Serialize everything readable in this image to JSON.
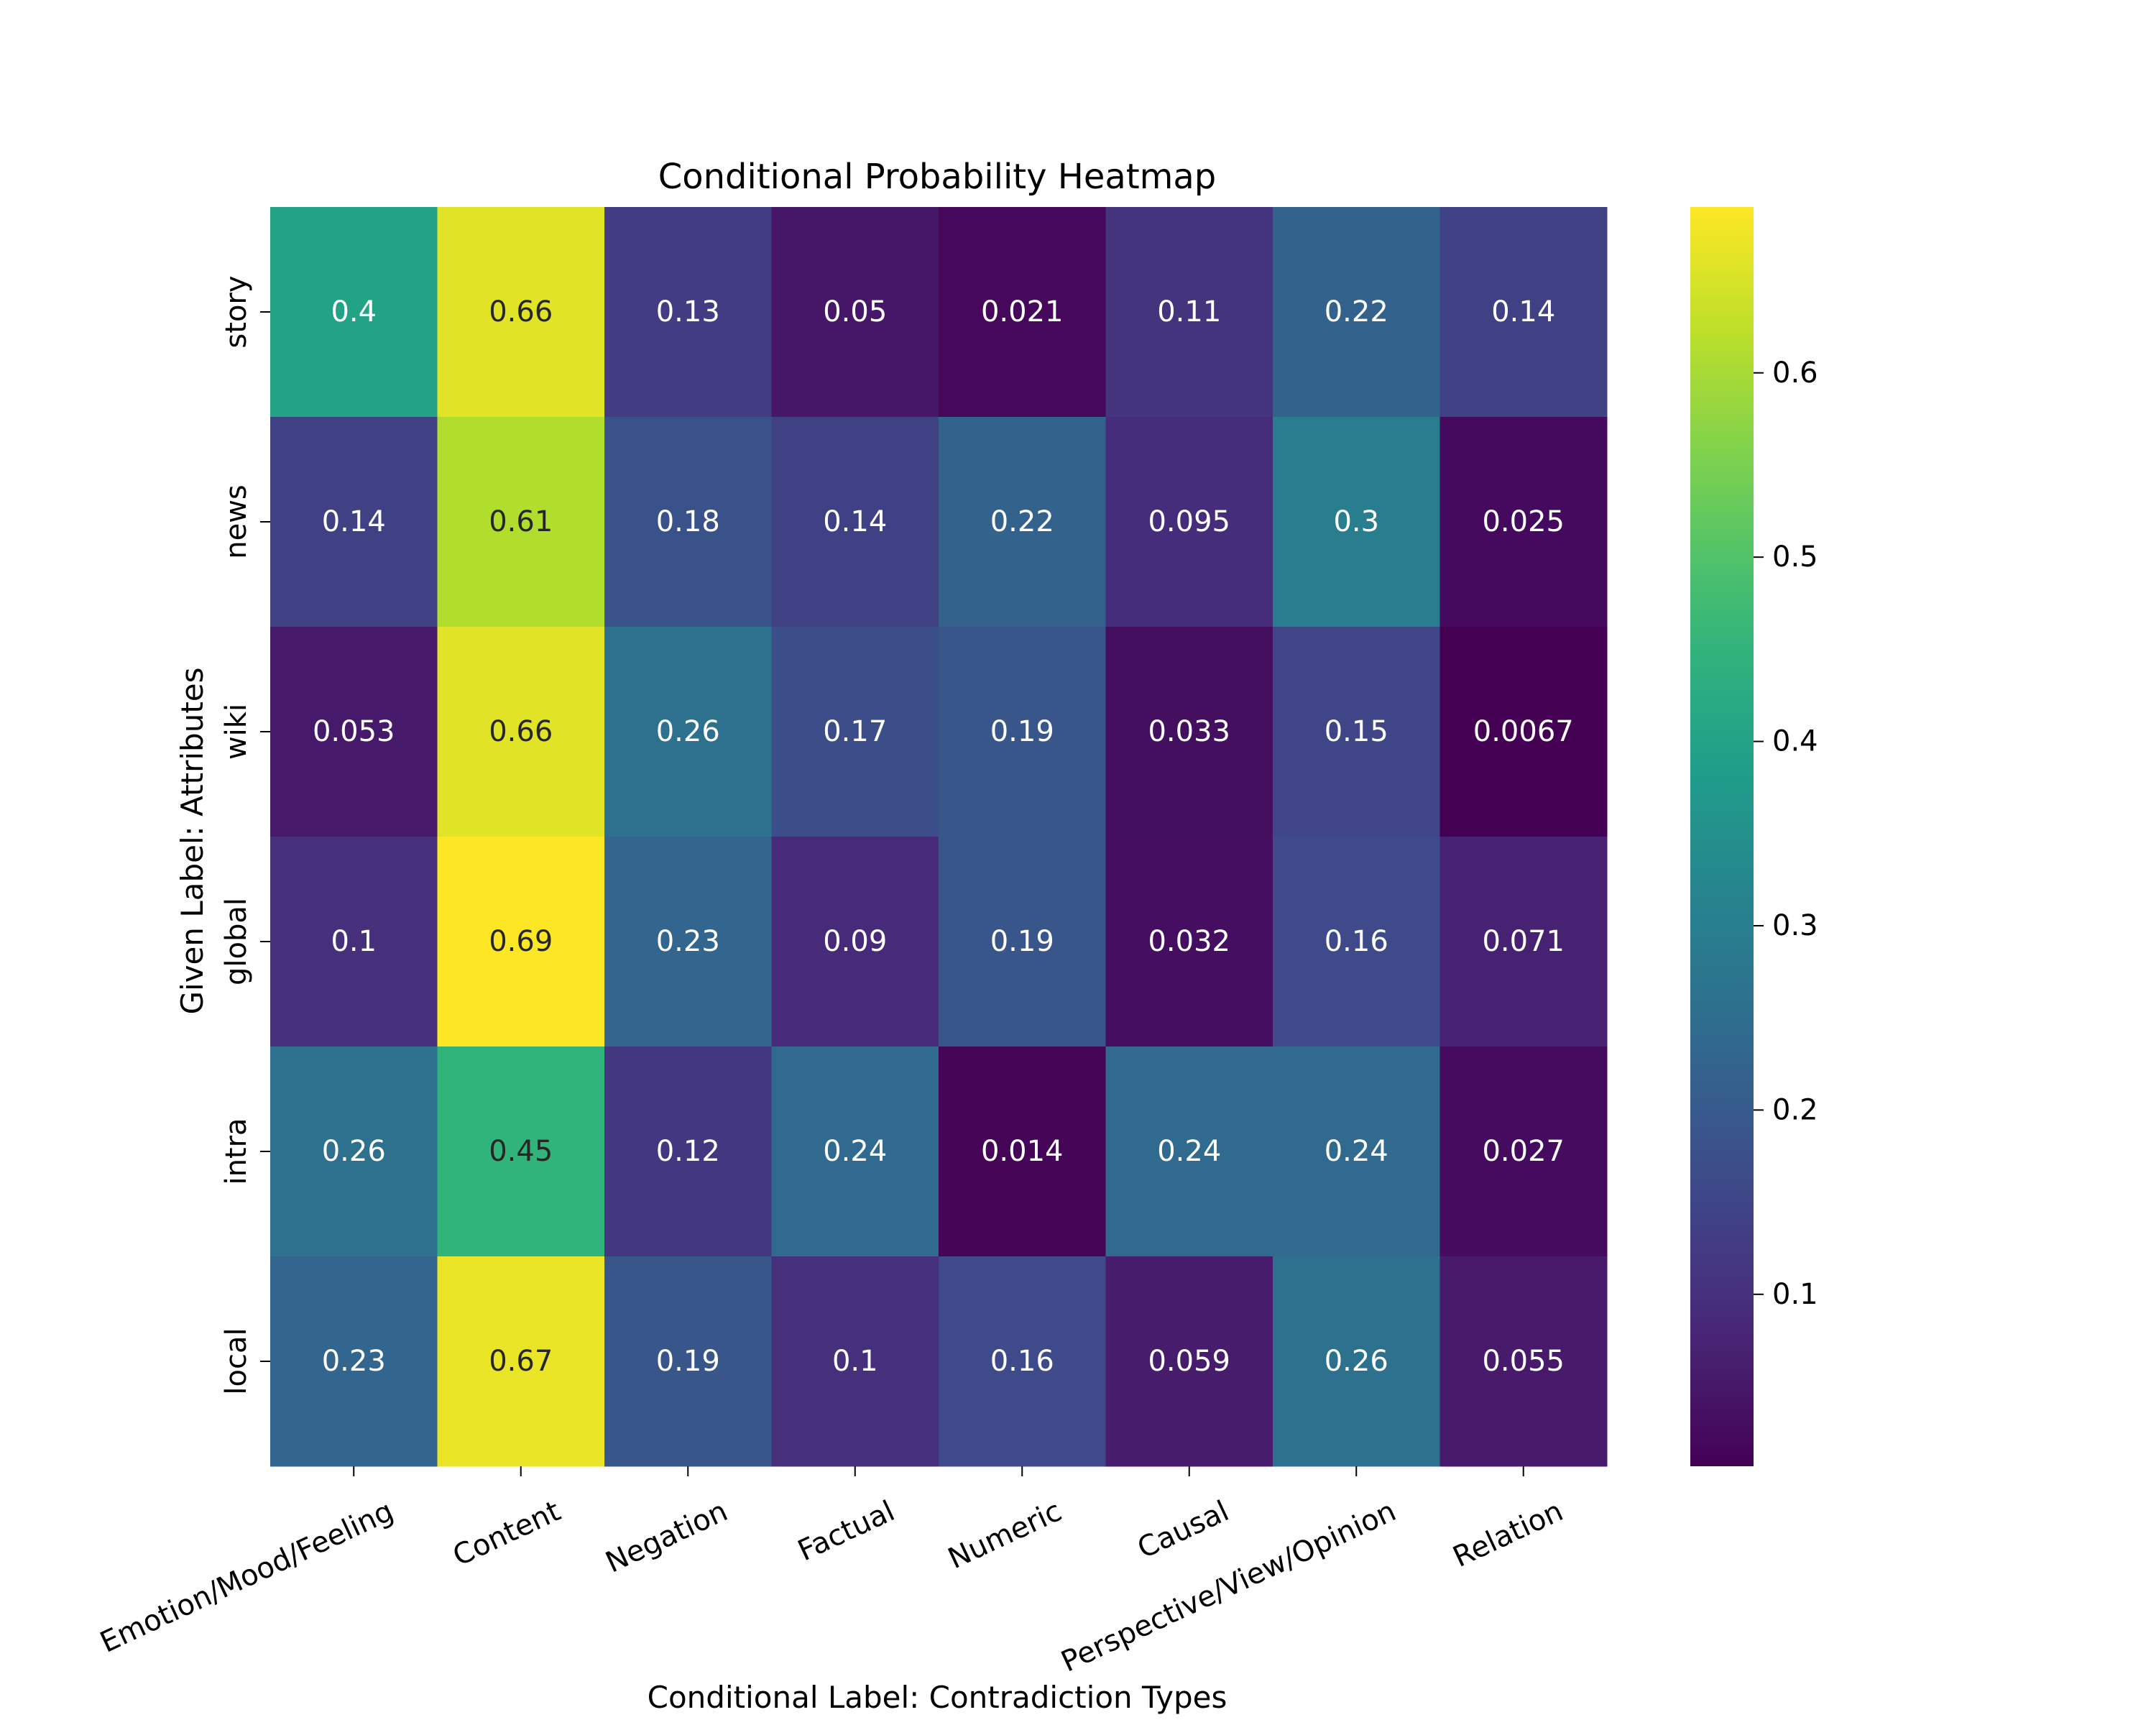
{
  "chart_data": {
    "type": "heatmap",
    "title": "Conditional Probability Heatmap",
    "xlabel": "Conditional Label: Contradiction Types",
    "ylabel": "Given Label: Attributes",
    "x_categories": [
      "Emotion/Mood/Feeling",
      "Content",
      "Negation",
      "Factual",
      "Numeric",
      "Causal",
      "Perspective/View/Opinion",
      "Relation"
    ],
    "y_categories": [
      "story",
      "news",
      "wiki",
      "global",
      "intra",
      "local"
    ],
    "values": [
      [
        0.4,
        0.66,
        0.13,
        0.05,
        0.021,
        0.11,
        0.22,
        0.14
      ],
      [
        0.14,
        0.61,
        0.18,
        0.14,
        0.22,
        0.095,
        0.3,
        0.025
      ],
      [
        0.053,
        0.66,
        0.26,
        0.17,
        0.19,
        0.033,
        0.15,
        0.0067
      ],
      [
        0.1,
        0.69,
        0.23,
        0.09,
        0.19,
        0.032,
        0.16,
        0.071
      ],
      [
        0.26,
        0.45,
        0.12,
        0.24,
        0.014,
        0.24,
        0.24,
        0.027
      ],
      [
        0.23,
        0.67,
        0.19,
        0.1,
        0.16,
        0.059,
        0.26,
        0.055
      ]
    ],
    "annotations": [
      [
        "0.4",
        "0.66",
        "0.13",
        "0.05",
        "0.021",
        "0.11",
        "0.22",
        "0.14"
      ],
      [
        "0.14",
        "0.61",
        "0.18",
        "0.14",
        "0.22",
        "0.095",
        "0.3",
        "0.025"
      ],
      [
        "0.053",
        "0.66",
        "0.26",
        "0.17",
        "0.19",
        "0.033",
        "0.15",
        "0.0067"
      ],
      [
        "0.1",
        "0.69",
        "0.23",
        "0.09",
        "0.19",
        "0.032",
        "0.16",
        "0.071"
      ],
      [
        "0.26",
        "0.45",
        "0.12",
        "0.24",
        "0.014",
        "0.24",
        "0.24",
        "0.027"
      ],
      [
        "0.23",
        "0.67",
        "0.19",
        "0.1",
        "0.16",
        "0.059",
        "0.26",
        "0.055"
      ]
    ],
    "colormap": "viridis",
    "vmin": 0.0067,
    "vmax": 0.69,
    "colorbar_ticks": [
      0.1,
      0.2,
      0.3,
      0.4,
      0.5,
      0.6
    ],
    "colorbar_tick_labels": [
      "0.1",
      "0.2",
      "0.3",
      "0.4",
      "0.5",
      "0.6"
    ]
  }
}
